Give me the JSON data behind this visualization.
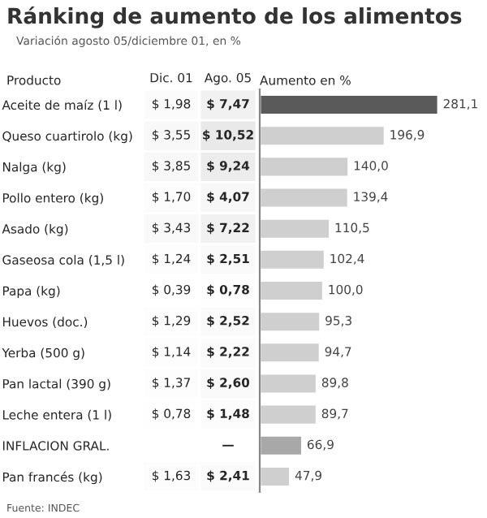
{
  "chart_data": [
    {
      "type": "heatmap",
      "title": "Ránking de aumento de los alimentos",
      "subtitle": "Variación agosto 05/diciembre 01, en %",
      "ylabel": "Producto",
      "categories": [
        "Dic. 01",
        "Ago. 05"
      ],
      "y_categories": [
        "Aceite de maíz (1 l)",
        "Queso cuartirolo (kg)",
        "Nalga (kg)",
        "Pollo entero (kg)",
        "Asado (kg)",
        "Gaseosa cola (1,5 l)",
        "Papa (kg)",
        "Huevos (doc.)",
        "Yerba (500 g)",
        "Pan lactal (390 g)",
        "Leche entera (1 l)",
        "INFLACION GRAL.",
        "Pan francés (kg)"
      ],
      "cells": [
        [
          1.98,
          7.47
        ],
        [
          3.55,
          10.52
        ],
        [
          3.85,
          9.24
        ],
        [
          1.7,
          4.07
        ],
        [
          3.43,
          7.22
        ],
        [
          1.24,
          2.51
        ],
        [
          0.39,
          0.78
        ],
        [
          1.29,
          2.52
        ],
        [
          1.14,
          2.22
        ],
        [
          1.37,
          2.6
        ],
        [
          0.78,
          1.48
        ],
        [
          null,
          null
        ],
        [
          1.63,
          2.41
        ]
      ],
      "cell_labels": [
        [
          "$ 1,98",
          "$ 7,47"
        ],
        [
          "$ 3,55",
          "$ 10,52"
        ],
        [
          "$ 3,85",
          "$ 9,24"
        ],
        [
          "$ 1,70",
          "$ 4,07"
        ],
        [
          "$ 3,43",
          "$ 7,22"
        ],
        [
          "$ 1,24",
          "$ 2,51"
        ],
        [
          "$ 0,39",
          "$ 0,78"
        ],
        [
          "$ 1,29",
          "$ 2,52"
        ],
        [
          "$ 1,14",
          "$ 2,22"
        ],
        [
          "$ 1,37",
          "$ 2,60"
        ],
        [
          "$ 0,78",
          "$ 1,48"
        ],
        [
          null,
          "—"
        ],
        [
          "$ 1,63",
          "$ 2,41"
        ]
      ],
      "annotations": [
        "Fuente: INDEC"
      ]
    },
    {
      "type": "bar",
      "orientation": "horizontal",
      "xlabel": "Aumento en %",
      "categories": [
        null,
        null,
        null,
        null,
        null,
        null,
        null,
        null,
        null,
        null,
        null,
        null,
        null
      ],
      "values": [
        281.1,
        196.9,
        140.0,
        139.4,
        110.5,
        102.4,
        100.0,
        95.3,
        94.7,
        89.8,
        89.7,
        66.9,
        47.9
      ],
      "colors": [
        "#5a5a5a",
        "#cfcfcf",
        "#cfcfcf",
        "#cfcfcf",
        "#cfcfcf",
        "#cfcfcf",
        "#cfcfcf",
        "#cfcfcf",
        "#cfcfcf",
        "#cfcfcf",
        "#cfcfcf",
        "#a8a8a8",
        "#cfcfcf"
      ],
      "value_labels": [
        "281,1",
        "196,9",
        "140,0",
        "139,4",
        "110,5",
        "102,4",
        "100,0",
        "95,3",
        "94,7",
        "89,8",
        "89,7",
        "66,9",
        "47,9"
      ],
      "tick_labels": false
    }
  ]
}
